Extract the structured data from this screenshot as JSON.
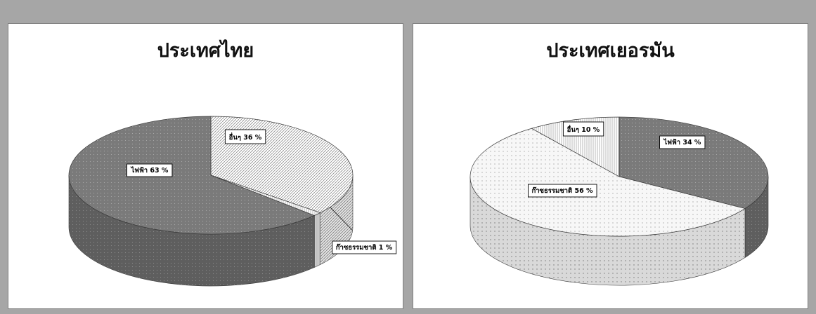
{
  "chart_data": [
    {
      "type": "pie",
      "title": "ประเทศไทย",
      "slices": [
        {
          "label": "อื่นๆ 36 %",
          "value": 36,
          "pattern": "diag-dense"
        },
        {
          "label": "ก๊าซธรรมชาติ 1 %",
          "value": 1,
          "pattern": "vlines"
        },
        {
          "label": "ไฟฟ้า 63 %",
          "value": 63,
          "pattern": "dots-dark"
        }
      ]
    },
    {
      "type": "pie",
      "title": "ประเทศเยอรมัน",
      "slices": [
        {
          "label": "ไฟฟ้า 34 %",
          "value": 34,
          "pattern": "dots-dark"
        },
        {
          "label": "ก๊าซธรรมชาติ 56 %",
          "value": 56,
          "pattern": "dots-light"
        },
        {
          "label": "อื่นๆ 10 %",
          "value": 10,
          "pattern": "vlines"
        }
      ]
    }
  ],
  "colors": {
    "page_bg": "#a6a6a6",
    "panel_bg": "#ffffff",
    "dark_slice": "#7a7a7a",
    "light_slice": "#f2f2f2"
  }
}
